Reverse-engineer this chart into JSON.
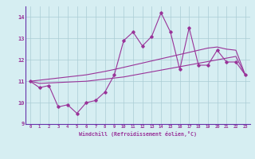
{
  "title": "",
  "xlabel": "Windchill (Refroidissement éolien,°C)",
  "x_data": [
    0,
    1,
    2,
    3,
    4,
    5,
    6,
    7,
    8,
    9,
    10,
    11,
    12,
    13,
    14,
    15,
    16,
    17,
    18,
    19,
    20,
    21,
    22,
    23
  ],
  "y_main": [
    11.0,
    10.7,
    10.8,
    9.8,
    9.9,
    9.5,
    10.0,
    10.1,
    10.5,
    11.3,
    12.9,
    13.3,
    12.65,
    13.1,
    14.2,
    13.3,
    11.55,
    13.5,
    11.75,
    11.75,
    12.45,
    11.9,
    11.9,
    11.3
  ],
  "y_upper": [
    11.0,
    11.05,
    11.1,
    11.15,
    11.2,
    11.25,
    11.3,
    11.38,
    11.46,
    11.55,
    11.65,
    11.75,
    11.85,
    11.95,
    12.05,
    12.15,
    12.25,
    12.35,
    12.45,
    12.55,
    12.6,
    12.5,
    12.45,
    11.3
  ],
  "y_lower": [
    11.0,
    10.9,
    10.92,
    10.94,
    10.96,
    10.98,
    11.0,
    11.05,
    11.1,
    11.15,
    11.2,
    11.28,
    11.36,
    11.44,
    11.52,
    11.6,
    11.68,
    11.76,
    11.84,
    11.92,
    12.0,
    12.08,
    12.16,
    11.3
  ],
  "ylim": [
    9.0,
    14.5
  ],
  "yticks": [
    9,
    10,
    11,
    12,
    13,
    14
  ],
  "xlim": [
    -0.5,
    23.5
  ],
  "bg_color": "#d6eef2",
  "line_color": "#993399",
  "grid_color": "#aaccd4",
  "font_color": "#993399",
  "spine_color": "#6633aa"
}
